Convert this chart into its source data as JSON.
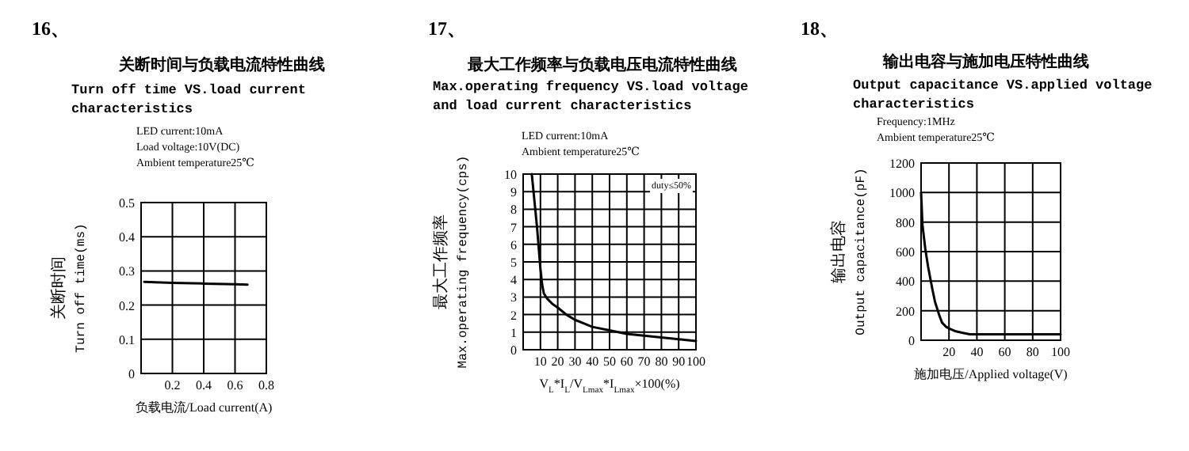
{
  "chart_data": [
    {
      "type": "line",
      "title": "关断时间与负载电流特性曲线",
      "subtitle": "Turn off time VS.load current characteristics",
      "xlabel": "负载电流/Load current(A)",
      "ylabel": "关断时间\nTurn off time(ms)",
      "annotations": [
        "16、",
        "LED current:10mA",
        "Load voltage:10V(DC)",
        "Ambient temperature25℃"
      ],
      "x": [
        0.02,
        0.2,
        0.4,
        0.6,
        0.68
      ],
      "series": [
        {
          "color": "#000000",
          "values": [
            0.268,
            0.265,
            0.263,
            0.261,
            0.26
          ]
        }
      ],
      "xlim": [
        0,
        0.8
      ],
      "ylim": [
        0,
        0.5
      ],
      "xticks": [
        0.2,
        0.4,
        0.6,
        0.8
      ],
      "yticks": [
        0,
        0.1,
        0.2,
        0.3,
        0.4,
        0.5
      ],
      "grid": true
    },
    {
      "type": "line",
      "title": "最大工作频率与负载电压电流特性曲线",
      "subtitle": "Max.operating frequency VS.load voltage and load current characteristics",
      "xlabel": "V$_{L}$*I$_{L}$/V$_{Lmax}$*I$_{Lmax}$×100(%)",
      "ylabel": "最大工作频率\nMax.operating frequency(cps)",
      "annotations": [
        "17、",
        "LED current:10mA",
        "Ambient temperature25℃",
        "duty≤50%"
      ],
      "x": [
        5,
        6,
        7,
        8,
        9,
        10,
        11,
        12,
        14,
        17,
        20,
        25,
        30,
        35,
        40,
        50,
        60,
        70,
        80,
        90,
        100
      ],
      "series": [
        {
          "color": "#000000",
          "values": [
            10,
            9,
            8,
            7,
            5.8,
            4.6,
            3.7,
            3.2,
            2.9,
            2.6,
            2.4,
            2.0,
            1.7,
            1.5,
            1.3,
            1.1,
            0.9,
            0.8,
            0.7,
            0.6,
            0.5
          ]
        }
      ],
      "xlim": [
        0,
        100
      ],
      "ylim": [
        0,
        10
      ],
      "xticks": [
        10,
        20,
        30,
        40,
        50,
        60,
        70,
        80,
        90,
        100
      ],
      "yticks": [
        0,
        1,
        2,
        3,
        4,
        5,
        6,
        7,
        8,
        9,
        10
      ],
      "grid": true
    },
    {
      "type": "line",
      "title": "输出电容与施加电压特性曲线",
      "subtitle": "Output capacitance VS.applied voltage characteristics",
      "xlabel": "施加电压/Applied voltage(V)",
      "ylabel": "输出电容\nOutput capacitance(pF)",
      "annotations": [
        "18、",
        "Frequency:1MHz",
        "Ambient temperature25℃"
      ],
      "x": [
        0,
        1,
        3,
        5,
        8,
        10,
        13,
        15,
        18,
        20,
        25,
        30,
        35,
        40,
        60,
        80,
        100
      ],
      "series": [
        {
          "color": "#000000",
          "values": [
            1000,
            780,
            620,
            500,
            350,
            260,
            170,
            120,
            90,
            80,
            60,
            50,
            40,
            40,
            40,
            40,
            40
          ]
        }
      ],
      "xlim": [
        0,
        100
      ],
      "ylim": [
        0,
        1200
      ],
      "xticks": [
        20,
        40,
        60,
        80,
        100
      ],
      "yticks": [
        0,
        200,
        400,
        600,
        800,
        1000,
        1200
      ],
      "grid": true
    }
  ]
}
